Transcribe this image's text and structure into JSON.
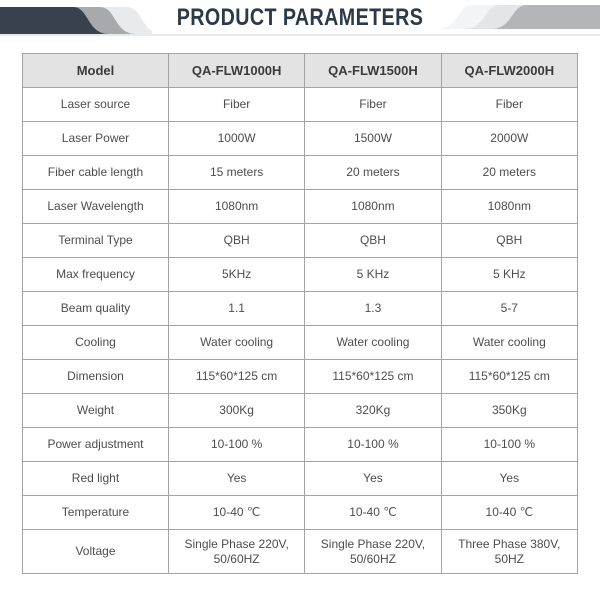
{
  "title": "PRODUCT PARAMETERS",
  "colors": {
    "title_text": "#2c3947",
    "swoosh_dark": "#39414f",
    "swoosh_mid_gray": "#a7a9ac",
    "swoosh_light_gray": "#e9eaeb",
    "swoosh_very_light": "#f3f4f5",
    "header_row_bg": "#e3e3e3",
    "table_border": "#a3a3a3",
    "cell_text": "#4d4d4d"
  },
  "table": {
    "headers": [
      "Model",
      "QA-FLW1000H",
      "QA-FLW1500H",
      "QA-FLW2000H"
    ],
    "rows": [
      {
        "label": "Laser source",
        "values": [
          "Fiber",
          "Fiber",
          "Fiber"
        ]
      },
      {
        "label": "Laser Power",
        "values": [
          "1000W",
          "1500W",
          "2000W"
        ]
      },
      {
        "label": "Fiber cable length",
        "values": [
          "15 meters",
          "20 meters",
          "20 meters"
        ]
      },
      {
        "label": "Laser Wavelength",
        "values": [
          "1080nm",
          "1080nm",
          "1080nm"
        ]
      },
      {
        "label": "Terminal Type",
        "values": [
          "QBH",
          "QBH",
          "QBH"
        ]
      },
      {
        "label": "Max frequency",
        "values": [
          "5KHz",
          "5 KHz",
          "5 KHz"
        ]
      },
      {
        "label": "Beam quality",
        "values": [
          "1.1",
          "1.3",
          "5-7"
        ]
      },
      {
        "label": "Cooling",
        "values": [
          "Water cooling",
          "Water cooling",
          "Water cooling"
        ]
      },
      {
        "label": "Dimension",
        "values": [
          "115*60*125 cm",
          "115*60*125 cm",
          "115*60*125 cm"
        ]
      },
      {
        "label": "Weight",
        "values": [
          "300Kg",
          "320Kg",
          "350Kg"
        ]
      },
      {
        "label": "Power adjustment",
        "values": [
          "10-100 %",
          "10-100 %",
          "10-100 %"
        ]
      },
      {
        "label": "Red light",
        "values": [
          "Yes",
          "Yes",
          "Yes"
        ]
      },
      {
        "label": "Temperature",
        "values": [
          "10-40 ℃",
          "10-40 ℃",
          "10-40 ℃"
        ]
      },
      {
        "label": "Voltage",
        "values": [
          "Single Phase 220V, 50/60HZ",
          "Single Phase 220V, 50/60HZ",
          "Three Phase 380V, 50HZ"
        ]
      }
    ]
  }
}
